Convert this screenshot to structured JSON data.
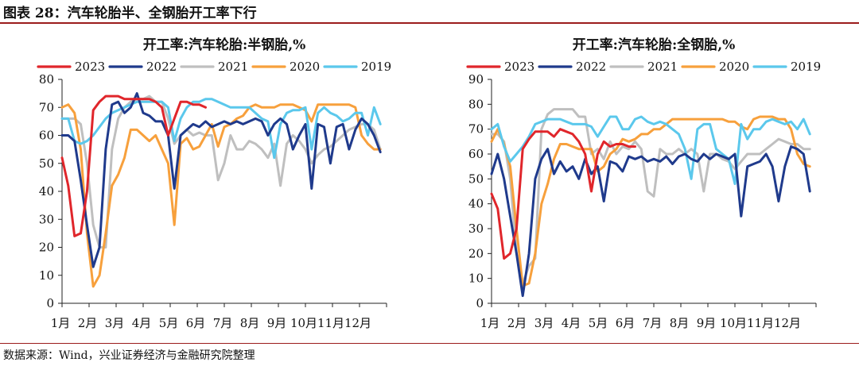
{
  "figure": {
    "title": "图表 28：汽车轮胎半、全钢胎开工率下行",
    "source": "数据来源：Wind，兴业证券经济与金融研究院整理"
  },
  "colors": {
    "2023": "#e0262b",
    "2022": "#1f3a8c",
    "2021": "#bfbfbf",
    "2020": "#f7a03c",
    "2019": "#5bc8ec",
    "rule": "#9b1c1c"
  },
  "chart_data": [
    {
      "type": "line",
      "title": "开工率:汽车轮胎:半钢胎,%",
      "x_tick_labels": [
        "1月",
        "2月",
        "3月",
        "4月",
        "5月",
        "6月",
        "7月",
        "8月",
        "9月",
        "10月",
        "11月",
        "12月"
      ],
      "x_unit": "week of year",
      "xlim": [
        1,
        53
      ],
      "ylim": [
        0,
        80
      ],
      "yticks": [
        0,
        10,
        20,
        30,
        40,
        50,
        60,
        70,
        80
      ],
      "grid": false,
      "legend_position": "top",
      "series": [
        {
          "name": "2023",
          "x": [
            1,
            2,
            3,
            4,
            5,
            6,
            7,
            8,
            9,
            10,
            11,
            12,
            13,
            14,
            15,
            16,
            17,
            18,
            19,
            20,
            21,
            22,
            23,
            24
          ],
          "y": [
            52,
            42,
            24,
            25,
            40,
            69,
            72,
            74,
            74,
            74,
            73,
            73,
            73,
            73,
            73,
            72,
            70,
            60,
            66,
            72,
            72,
            71,
            71,
            70
          ]
        },
        {
          "name": "2022",
          "x": [
            1,
            2,
            3,
            4,
            5,
            6,
            7,
            8,
            9,
            10,
            11,
            12,
            13,
            14,
            15,
            16,
            17,
            18,
            19,
            20,
            21,
            22,
            23,
            24,
            25,
            26,
            27,
            28,
            29,
            30,
            31,
            32,
            33,
            34,
            35,
            36,
            37,
            38,
            39,
            40,
            41,
            42,
            43,
            44,
            45,
            46,
            47,
            48,
            49,
            50,
            51,
            52
          ],
          "y": [
            60,
            60,
            58,
            44,
            28,
            13,
            20,
            55,
            71,
            72,
            68,
            70,
            75,
            68,
            67,
            65,
            65,
            60,
            41,
            60,
            62,
            64,
            63,
            65,
            63,
            64,
            65,
            64,
            65,
            64,
            65,
            66,
            65,
            60,
            64,
            66,
            64,
            55,
            60,
            64,
            41,
            64,
            63,
            50,
            63,
            64,
            55,
            62,
            66,
            64,
            60,
            54
          ]
        },
        {
          "name": "2021",
          "x": [
            1,
            2,
            3,
            4,
            5,
            6,
            7,
            8,
            9,
            10,
            11,
            12,
            13,
            14,
            15,
            16,
            17,
            18,
            19,
            20,
            21,
            22,
            23,
            24,
            25,
            26,
            27,
            28,
            29,
            30,
            31,
            32,
            33,
            34,
            35,
            36,
            37,
            38,
            39,
            40,
            41,
            42,
            43,
            44,
            45,
            46,
            47,
            48,
            49,
            50,
            51,
            52
          ],
          "y": [
            66,
            66,
            66,
            64,
            50,
            28,
            20,
            20,
            55,
            66,
            70,
            72,
            73,
            73,
            74,
            72,
            72,
            66,
            57,
            60,
            62,
            60,
            61,
            60,
            60,
            44,
            50,
            60,
            55,
            55,
            58,
            57,
            55,
            52,
            57,
            42,
            57,
            60,
            58,
            55,
            50,
            53,
            55,
            56,
            58,
            60,
            62,
            63,
            64,
            64,
            62,
            55
          ]
        },
        {
          "name": "2020",
          "x": [
            1,
            2,
            3,
            4,
            5,
            6,
            7,
            8,
            9,
            10,
            11,
            12,
            13,
            14,
            15,
            16,
            17,
            18,
            19,
            20,
            21,
            22,
            23,
            24,
            25,
            26,
            27,
            28,
            29,
            30,
            31,
            32,
            33,
            34,
            35,
            36,
            37,
            38,
            39,
            40,
            41,
            42,
            43,
            44,
            45,
            46,
            47,
            48,
            49,
            50,
            51,
            52
          ],
          "y": [
            70,
            71,
            68,
            55,
            25,
            6,
            10,
            25,
            42,
            46,
            52,
            62,
            62,
            60,
            58,
            60,
            55,
            50,
            28,
            57,
            59,
            55,
            56,
            60,
            64,
            56,
            63,
            64,
            66,
            67,
            70,
            71,
            70,
            70,
            70,
            71,
            71,
            71,
            70,
            69,
            65,
            71,
            71,
            71,
            71,
            71,
            71,
            70,
            60,
            57,
            55,
            55
          ]
        },
        {
          "name": "2019",
          "x": [
            1,
            2,
            3,
            4,
            5,
            6,
            7,
            8,
            9,
            10,
            11,
            12,
            13,
            14,
            15,
            16,
            17,
            18,
            19,
            20,
            21,
            22,
            23,
            24,
            25,
            26,
            27,
            28,
            29,
            30,
            31,
            32,
            33,
            34,
            35,
            36,
            37,
            38,
            39,
            40,
            41,
            42,
            43,
            44,
            45,
            46,
            47,
            48,
            49,
            50,
            51,
            52
          ],
          "y": [
            66,
            66,
            58,
            57,
            58,
            60,
            63,
            66,
            68,
            69,
            70,
            71,
            72,
            72,
            72,
            72,
            72,
            70,
            58,
            66,
            70,
            72,
            72,
            73,
            73,
            72,
            71,
            70,
            70,
            70,
            70,
            68,
            66,
            65,
            52,
            64,
            68,
            69,
            69,
            70,
            55,
            68,
            70,
            68,
            67,
            65,
            66,
            68,
            68,
            60,
            70,
            64
          ]
        }
      ]
    },
    {
      "type": "line",
      "title": "开工率:汽车轮胎:全钢胎,%",
      "x_tick_labels": [
        "1月",
        "2月",
        "3月",
        "4月",
        "5月",
        "6月",
        "7月",
        "8月",
        "9月",
        "10月",
        "11月",
        "12月"
      ],
      "x_unit": "week of year",
      "xlim": [
        1,
        53
      ],
      "ylim": [
        0,
        90
      ],
      "yticks": [
        0,
        10,
        20,
        30,
        40,
        50,
        60,
        70,
        80,
        90
      ],
      "grid": false,
      "legend_position": "top",
      "series": [
        {
          "name": "2023",
          "x": [
            1,
            2,
            3,
            4,
            5,
            6,
            7,
            8,
            9,
            10,
            11,
            12,
            13,
            14,
            15,
            16,
            17,
            18,
            19,
            20,
            21,
            22,
            23,
            24
          ],
          "y": [
            44,
            38,
            18,
            20,
            30,
            62,
            66,
            69,
            69,
            69,
            67,
            70,
            69,
            68,
            65,
            60,
            45,
            60,
            65,
            63,
            64,
            64,
            63,
            63
          ]
        },
        {
          "name": "2022",
          "x": [
            1,
            2,
            3,
            4,
            5,
            6,
            7,
            8,
            9,
            10,
            11,
            12,
            13,
            14,
            15,
            16,
            17,
            18,
            19,
            20,
            21,
            22,
            23,
            24,
            25,
            26,
            27,
            28,
            29,
            30,
            31,
            32,
            33,
            34,
            35,
            36,
            37,
            38,
            39,
            40,
            41,
            42,
            43,
            44,
            45,
            46,
            47,
            48,
            49,
            50,
            51,
            52
          ],
          "y": [
            52,
            60,
            50,
            35,
            20,
            3,
            20,
            50,
            58,
            62,
            52,
            57,
            53,
            55,
            50,
            58,
            52,
            55,
            41,
            57,
            56,
            53,
            59,
            58,
            59,
            57,
            58,
            57,
            59,
            56,
            59,
            60,
            58,
            57,
            60,
            58,
            60,
            59,
            58,
            60,
            35,
            55,
            56,
            57,
            60,
            55,
            41,
            55,
            63,
            62,
            60,
            45
          ]
        },
        {
          "name": "2021",
          "x": [
            1,
            2,
            3,
            4,
            5,
            6,
            7,
            8,
            9,
            10,
            11,
            12,
            13,
            14,
            15,
            16,
            17,
            18,
            19,
            20,
            21,
            22,
            23,
            24,
            25,
            26,
            27,
            28,
            29,
            30,
            31,
            32,
            33,
            34,
            35,
            36,
            37,
            38,
            39,
            40,
            41,
            42,
            43,
            44,
            45,
            46,
            47,
            48,
            49,
            50,
            51,
            52
          ],
          "y": [
            68,
            68,
            65,
            50,
            20,
            8,
            15,
            18,
            70,
            76,
            78,
            78,
            78,
            78,
            75,
            75,
            60,
            62,
            58,
            65,
            60,
            63,
            62,
            65,
            62,
            45,
            43,
            62,
            60,
            60,
            62,
            60,
            62,
            60,
            45,
            60,
            60,
            58,
            57,
            54,
            57,
            60,
            60,
            60,
            62,
            64,
            66,
            65,
            64,
            64,
            62,
            62
          ]
        },
        {
          "name": "2020",
          "x": [
            1,
            2,
            3,
            4,
            5,
            6,
            7,
            8,
            9,
            10,
            11,
            12,
            13,
            14,
            15,
            16,
            17,
            18,
            19,
            20,
            21,
            22,
            23,
            24,
            25,
            26,
            27,
            28,
            29,
            30,
            31,
            32,
            33,
            34,
            35,
            36,
            37,
            38,
            39,
            40,
            41,
            42,
            43,
            44,
            45,
            46,
            47,
            48,
            49,
            50,
            51,
            52
          ],
          "y": [
            65,
            70,
            64,
            55,
            30,
            7,
            8,
            20,
            40,
            48,
            58,
            64,
            64,
            63,
            62,
            62,
            62,
            53,
            55,
            60,
            62,
            66,
            65,
            66,
            68,
            68,
            70,
            70,
            72,
            74,
            74,
            74,
            74,
            74,
            74,
            74,
            74,
            74,
            73,
            73,
            71,
            70,
            74,
            75,
            75,
            75,
            74,
            74,
            70,
            60,
            56,
            55
          ]
        },
        {
          "name": "2019",
          "x": [
            1,
            2,
            3,
            4,
            5,
            6,
            7,
            8,
            9,
            10,
            11,
            12,
            13,
            14,
            15,
            16,
            17,
            18,
            19,
            20,
            21,
            22,
            23,
            24,
            25,
            26,
            27,
            28,
            29,
            30,
            31,
            32,
            33,
            34,
            35,
            36,
            37,
            38,
            39,
            40,
            41,
            42,
            43,
            44,
            45,
            46,
            47,
            48,
            49,
            50,
            51,
            52
          ],
          "y": [
            70,
            72,
            63,
            57,
            60,
            63,
            67,
            72,
            73,
            74,
            74,
            74,
            73,
            72,
            72,
            72,
            71,
            67,
            71,
            75,
            75,
            70,
            70,
            74,
            75,
            73,
            72,
            73,
            72,
            70,
            68,
            62,
            50,
            70,
            72,
            72,
            62,
            60,
            58,
            48,
            72,
            66,
            70,
            70,
            73,
            74,
            73,
            72,
            73,
            70,
            74,
            68
          ]
        }
      ]
    }
  ]
}
